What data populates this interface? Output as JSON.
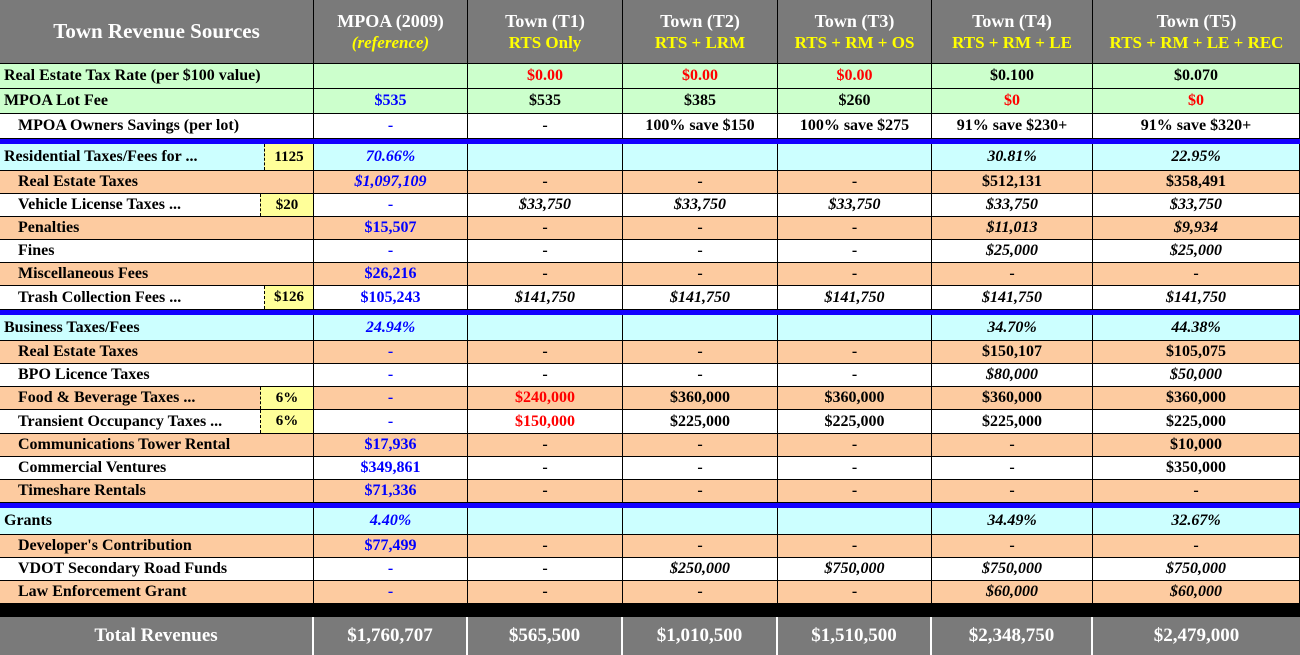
{
  "header": {
    "title": "Town Revenue Sources",
    "columns": [
      {
        "name": "MPOA (2009)",
        "sub": "(reference)"
      },
      {
        "name": "Town (T1)",
        "sub": "RTS Only"
      },
      {
        "name": "Town (T2)",
        "sub": "RTS + LRM"
      },
      {
        "name": "Town (T3)",
        "sub": "RTS + RM + OS"
      },
      {
        "name": "Town (T4)",
        "sub": "RTS + RM + LE"
      },
      {
        "name": "Town (T5)",
        "sub": "RTS + RM + LE + REC"
      }
    ]
  },
  "rows": {
    "tax_rate": {
      "label": "Real Estate Tax Rate (per $100 value)",
      "v": [
        "",
        "$0.00",
        "$0.00",
        "$0.00",
        "$0.100",
        "$0.070"
      ]
    },
    "lot_fee": {
      "label": "MPOA Lot Fee",
      "v": [
        "$535",
        "$535",
        "$385",
        "$260",
        "$0",
        "$0"
      ]
    },
    "owners_savings": {
      "label": "MPOA Owners Savings (per lot)",
      "v": [
        "-",
        "-",
        "100% save $150",
        "100% save $275",
        "91% save $230+",
        "91% save $320+"
      ]
    },
    "residential": {
      "label": "Residential Taxes/Fees for ...",
      "badge": "1125",
      "v": [
        "70.66%",
        "",
        "",
        "",
        "30.81%",
        "22.95%"
      ]
    },
    "res_real_estate": {
      "label": "Real Estate Taxes",
      "v": [
        "$1,097,109",
        "-",
        "-",
        "-",
        "$512,131",
        "$358,491"
      ]
    },
    "vehicle": {
      "label": "Vehicle License Taxes ...",
      "badge": "$20",
      "v": [
        "-",
        "$33,750",
        "$33,750",
        "$33,750",
        "$33,750",
        "$33,750"
      ]
    },
    "penalties": {
      "label": "Penalties",
      "v": [
        "$15,507",
        "-",
        "-",
        "-",
        "$11,013",
        "$9,934"
      ]
    },
    "fines": {
      "label": "Fines",
      "v": [
        "-",
        "-",
        "-",
        "-",
        "$25,000",
        "$25,000"
      ]
    },
    "misc": {
      "label": "Miscellaneous Fees",
      "v": [
        "$26,216",
        "-",
        "-",
        "-",
        "-",
        "-"
      ]
    },
    "trash": {
      "label": "Trash Collection Fees ...",
      "badge": "$126",
      "v": [
        "$105,243",
        "$141,750",
        "$141,750",
        "$141,750",
        "$141,750",
        "$141,750"
      ]
    },
    "business": {
      "label": "Business Taxes/Fees",
      "v": [
        "24.94%",
        "",
        "",
        "",
        "34.70%",
        "44.38%"
      ]
    },
    "bus_real_estate": {
      "label": "Real Estate Taxes",
      "v": [
        "-",
        "-",
        "-",
        "-",
        "$150,107",
        "$105,075"
      ]
    },
    "bpo": {
      "label": "BPO Licence Taxes",
      "v": [
        "-",
        "-",
        "-",
        "-",
        "$80,000",
        "$50,000"
      ]
    },
    "food": {
      "label": "Food & Beverage Taxes ...",
      "badge": "6%",
      "v": [
        "-",
        "$240,000",
        "$360,000",
        "$360,000",
        "$360,000",
        "$360,000"
      ]
    },
    "transient": {
      "label": "Transient Occupancy Taxes ...",
      "badge": "6%",
      "v": [
        "-",
        "$150,000",
        "$225,000",
        "$225,000",
        "$225,000",
        "$225,000"
      ]
    },
    "tower": {
      "label": "Communications Tower Rental",
      "v": [
        "$17,936",
        "-",
        "-",
        "-",
        "-",
        "$10,000"
      ]
    },
    "commercial": {
      "label": "Commercial Ventures",
      "v": [
        "$349,861",
        "-",
        "-",
        "-",
        "-",
        "$350,000"
      ]
    },
    "timeshare": {
      "label": "Timeshare Rentals",
      "v": [
        "$71,336",
        "-",
        "-",
        "-",
        "-",
        "-"
      ]
    },
    "grants": {
      "label": "Grants",
      "v": [
        "4.40%",
        "",
        "",
        "",
        "34.49%",
        "32.67%"
      ]
    },
    "developer": {
      "label": "Developer's Contribution",
      "v": [
        "$77,499",
        "-",
        "-",
        "-",
        "-",
        "-"
      ]
    },
    "vdot": {
      "label": "VDOT Secondary Road Funds",
      "v": [
        "-",
        "-",
        "$250,000",
        "$750,000",
        "$750,000",
        "$750,000"
      ]
    },
    "law": {
      "label": "Law Enforcement Grant",
      "v": [
        "-",
        "-",
        "-",
        "-",
        "$60,000",
        "$60,000"
      ]
    }
  },
  "total": {
    "label": "Total Revenues",
    "v": [
      "$1,760,707",
      "$565,500",
      "$1,010,500",
      "$1,510,500",
      "$2,348,750",
      "$2,479,000"
    ]
  },
  "colors": {
    "header_bg": "#7a7a7a",
    "highlight_yellow": "#ffff00",
    "green_row": "#ccffcc",
    "cyan_row": "#ccffff",
    "peach_row": "#fdcba0",
    "red_text": "#ff0000",
    "blue_text": "#0000ff",
    "separator_blue": "#1400ff"
  }
}
